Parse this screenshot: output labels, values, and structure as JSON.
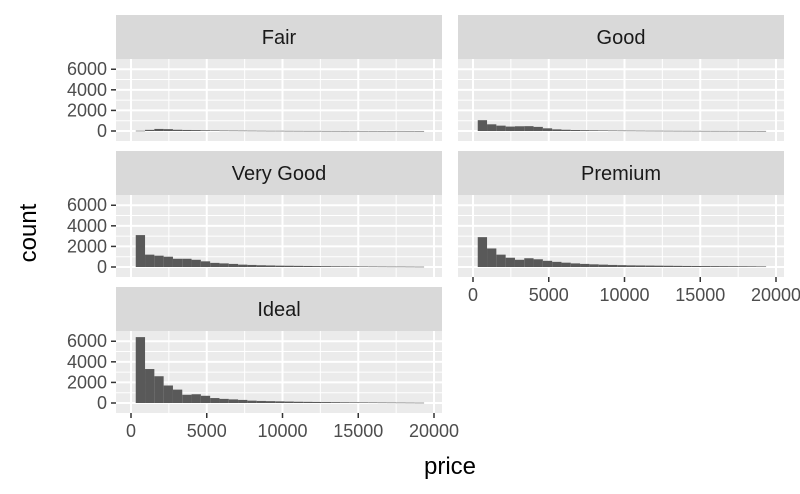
{
  "chart_data": {
    "type": "bar",
    "subtype": "faceted-histogram",
    "xlabel": "price",
    "ylabel": "count",
    "xlim": [
      0,
      20000
    ],
    "ylim": [
      0,
      6800
    ],
    "x_ticks": [
      0,
      5000,
      10000,
      15000,
      20000
    ],
    "x_tick_labels": [
      "0",
      "5000",
      "10000",
      "15000",
      "20000"
    ],
    "y_ticks": [
      0,
      2000,
      4000,
      6000
    ],
    "y_tick_labels": [
      "0",
      "2000",
      "4000",
      "6000"
    ],
    "bin_edges": [
      313,
      927,
      1541,
      2155,
      2769,
      3383,
      3997,
      4611,
      5225,
      5839,
      6453,
      7067,
      7681,
      8295,
      8909,
      9523,
      10137,
      10751,
      11365,
      11979,
      12593,
      13207,
      13821,
      14435,
      15049,
      15663,
      16277,
      16891,
      17505,
      18119,
      18733,
      19347
    ],
    "grid": true,
    "legend": "none",
    "colors": {
      "panel_background": "#ebebeb",
      "strip_background": "#d9d9d9",
      "bar_fill": "#595959",
      "grid_line": "#ffffff",
      "tick_text": "#4d4d4d"
    },
    "facets": [
      {
        "label": "Fair",
        "values": [
          30,
          110,
          200,
          180,
          120,
          100,
          90,
          70,
          60,
          50,
          45,
          40,
          35,
          30,
          25,
          25,
          20,
          18,
          15,
          15,
          12,
          12,
          10,
          10,
          8,
          8,
          6,
          6,
          8,
          6,
          4
        ]
      },
      {
        "label": "Good",
        "values": [
          1050,
          650,
          520,
          430,
          460,
          470,
          400,
          260,
          160,
          120,
          95,
          80,
          70,
          60,
          50,
          45,
          40,
          35,
          30,
          28,
          25,
          22,
          20,
          18,
          16,
          15,
          14,
          12,
          12,
          10,
          8
        ]
      },
      {
        "label": "Very Good",
        "values": [
          3100,
          1200,
          1100,
          1000,
          800,
          800,
          700,
          550,
          400,
          350,
          300,
          230,
          200,
          170,
          150,
          130,
          120,
          110,
          100,
          90,
          80,
          70,
          65,
          60,
          55,
          50,
          45,
          40,
          40,
          35,
          30
        ]
      },
      {
        "label": "Premium",
        "values": [
          2900,
          1800,
          1200,
          900,
          700,
          850,
          750,
          600,
          500,
          420,
          350,
          300,
          260,
          230,
          200,
          180,
          160,
          150,
          140,
          130,
          120,
          110,
          100,
          95,
          90,
          85,
          80,
          75,
          70,
          65,
          55
        ]
      },
      {
        "label": "Ideal",
        "values": [
          6400,
          3300,
          2600,
          1700,
          1300,
          800,
          850,
          700,
          480,
          400,
          350,
          300,
          230,
          200,
          180,
          160,
          140,
          120,
          110,
          100,
          90,
          80,
          70,
          65,
          60,
          55,
          50,
          45,
          40,
          35,
          30
        ]
      }
    ]
  }
}
